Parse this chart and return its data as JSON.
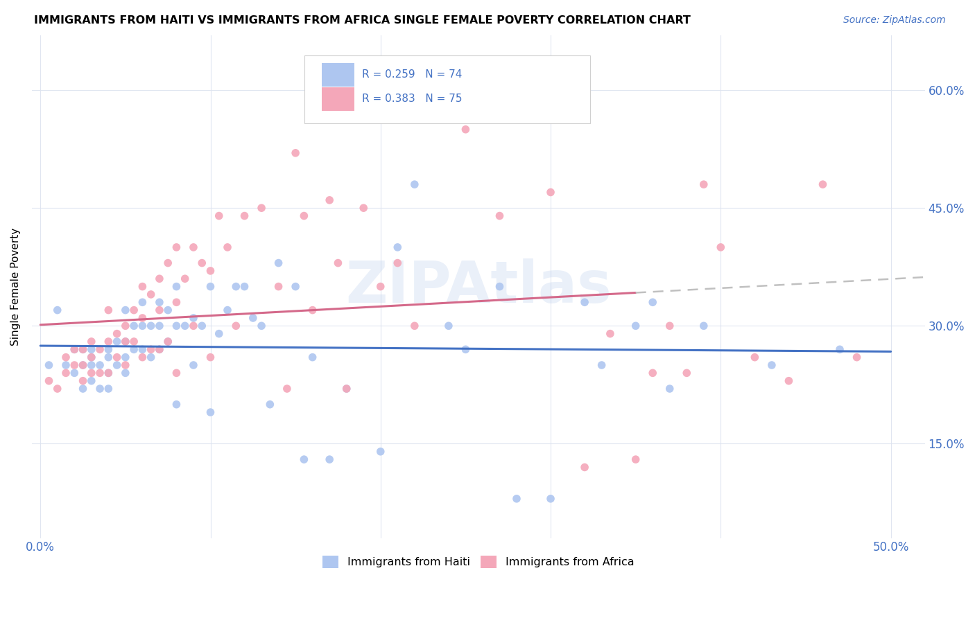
{
  "title": "IMMIGRANTS FROM HAITI VS IMMIGRANTS FROM AFRICA SINGLE FEMALE POVERTY CORRELATION CHART",
  "source": "Source: ZipAtlas.com",
  "ylabel": "Single Female Poverty",
  "y_ticks": [
    0.15,
    0.3,
    0.45,
    0.6
  ],
  "y_tick_labels": [
    "15.0%",
    "30.0%",
    "45.0%",
    "60.0%"
  ],
  "x_ticks": [
    0.0,
    0.5
  ],
  "x_tick_labels": [
    "0.0%",
    "50.0%"
  ],
  "xlim": [
    -0.005,
    0.52
  ],
  "ylim": [
    0.03,
    0.67
  ],
  "haiti_color": "#aec6f0",
  "africa_color": "#f4a7b9",
  "haiti_line_color": "#4472c4",
  "africa_line_color": "#d4698a",
  "africa_line_dash_color": "#c0c0c0",
  "haiti_R": 0.259,
  "haiti_N": 74,
  "africa_R": 0.383,
  "africa_N": 75,
  "legend_text_color": "#4472c4",
  "watermark": "ZIPAtlas",
  "haiti_x": [
    0.005,
    0.01,
    0.015,
    0.02,
    0.02,
    0.025,
    0.025,
    0.025,
    0.03,
    0.03,
    0.03,
    0.03,
    0.035,
    0.035,
    0.04,
    0.04,
    0.04,
    0.04,
    0.045,
    0.045,
    0.05,
    0.05,
    0.05,
    0.05,
    0.055,
    0.055,
    0.06,
    0.06,
    0.06,
    0.065,
    0.065,
    0.07,
    0.07,
    0.07,
    0.075,
    0.075,
    0.08,
    0.08,
    0.08,
    0.085,
    0.09,
    0.09,
    0.095,
    0.1,
    0.1,
    0.105,
    0.11,
    0.115,
    0.12,
    0.125,
    0.13,
    0.135,
    0.14,
    0.15,
    0.155,
    0.16,
    0.17,
    0.18,
    0.2,
    0.21,
    0.22,
    0.24,
    0.25,
    0.27,
    0.28,
    0.3,
    0.32,
    0.33,
    0.35,
    0.36,
    0.37,
    0.39,
    0.43,
    0.47
  ],
  "haiti_y": [
    0.25,
    0.32,
    0.25,
    0.27,
    0.24,
    0.27,
    0.25,
    0.22,
    0.27,
    0.26,
    0.25,
    0.23,
    0.25,
    0.22,
    0.27,
    0.26,
    0.24,
    0.22,
    0.28,
    0.25,
    0.32,
    0.28,
    0.26,
    0.24,
    0.3,
    0.27,
    0.33,
    0.3,
    0.27,
    0.3,
    0.26,
    0.33,
    0.3,
    0.27,
    0.32,
    0.28,
    0.35,
    0.3,
    0.2,
    0.3,
    0.31,
    0.25,
    0.3,
    0.35,
    0.19,
    0.29,
    0.32,
    0.35,
    0.35,
    0.31,
    0.3,
    0.2,
    0.38,
    0.35,
    0.13,
    0.26,
    0.13,
    0.22,
    0.14,
    0.4,
    0.48,
    0.3,
    0.27,
    0.35,
    0.08,
    0.08,
    0.33,
    0.25,
    0.3,
    0.33,
    0.22,
    0.3,
    0.25,
    0.27
  ],
  "africa_x": [
    0.005,
    0.01,
    0.015,
    0.015,
    0.02,
    0.02,
    0.025,
    0.025,
    0.025,
    0.03,
    0.03,
    0.03,
    0.035,
    0.035,
    0.04,
    0.04,
    0.04,
    0.045,
    0.045,
    0.05,
    0.05,
    0.05,
    0.055,
    0.055,
    0.06,
    0.06,
    0.06,
    0.065,
    0.065,
    0.07,
    0.07,
    0.07,
    0.075,
    0.075,
    0.08,
    0.08,
    0.08,
    0.085,
    0.09,
    0.09,
    0.095,
    0.1,
    0.1,
    0.105,
    0.11,
    0.115,
    0.12,
    0.13,
    0.14,
    0.145,
    0.15,
    0.155,
    0.16,
    0.17,
    0.175,
    0.18,
    0.19,
    0.2,
    0.21,
    0.22,
    0.25,
    0.27,
    0.3,
    0.32,
    0.335,
    0.35,
    0.36,
    0.37,
    0.38,
    0.39,
    0.4,
    0.42,
    0.44,
    0.46,
    0.48
  ],
  "africa_y": [
    0.23,
    0.22,
    0.26,
    0.24,
    0.27,
    0.25,
    0.27,
    0.25,
    0.23,
    0.28,
    0.26,
    0.24,
    0.27,
    0.24,
    0.32,
    0.28,
    0.24,
    0.29,
    0.26,
    0.3,
    0.28,
    0.25,
    0.32,
    0.28,
    0.35,
    0.31,
    0.26,
    0.34,
    0.27,
    0.36,
    0.32,
    0.27,
    0.38,
    0.28,
    0.4,
    0.33,
    0.24,
    0.36,
    0.4,
    0.3,
    0.38,
    0.37,
    0.26,
    0.44,
    0.4,
    0.3,
    0.44,
    0.45,
    0.35,
    0.22,
    0.52,
    0.44,
    0.32,
    0.46,
    0.38,
    0.22,
    0.45,
    0.35,
    0.38,
    0.3,
    0.55,
    0.44,
    0.47,
    0.12,
    0.29,
    0.13,
    0.24,
    0.3,
    0.24,
    0.48,
    0.4,
    0.26,
    0.23,
    0.48,
    0.26
  ]
}
